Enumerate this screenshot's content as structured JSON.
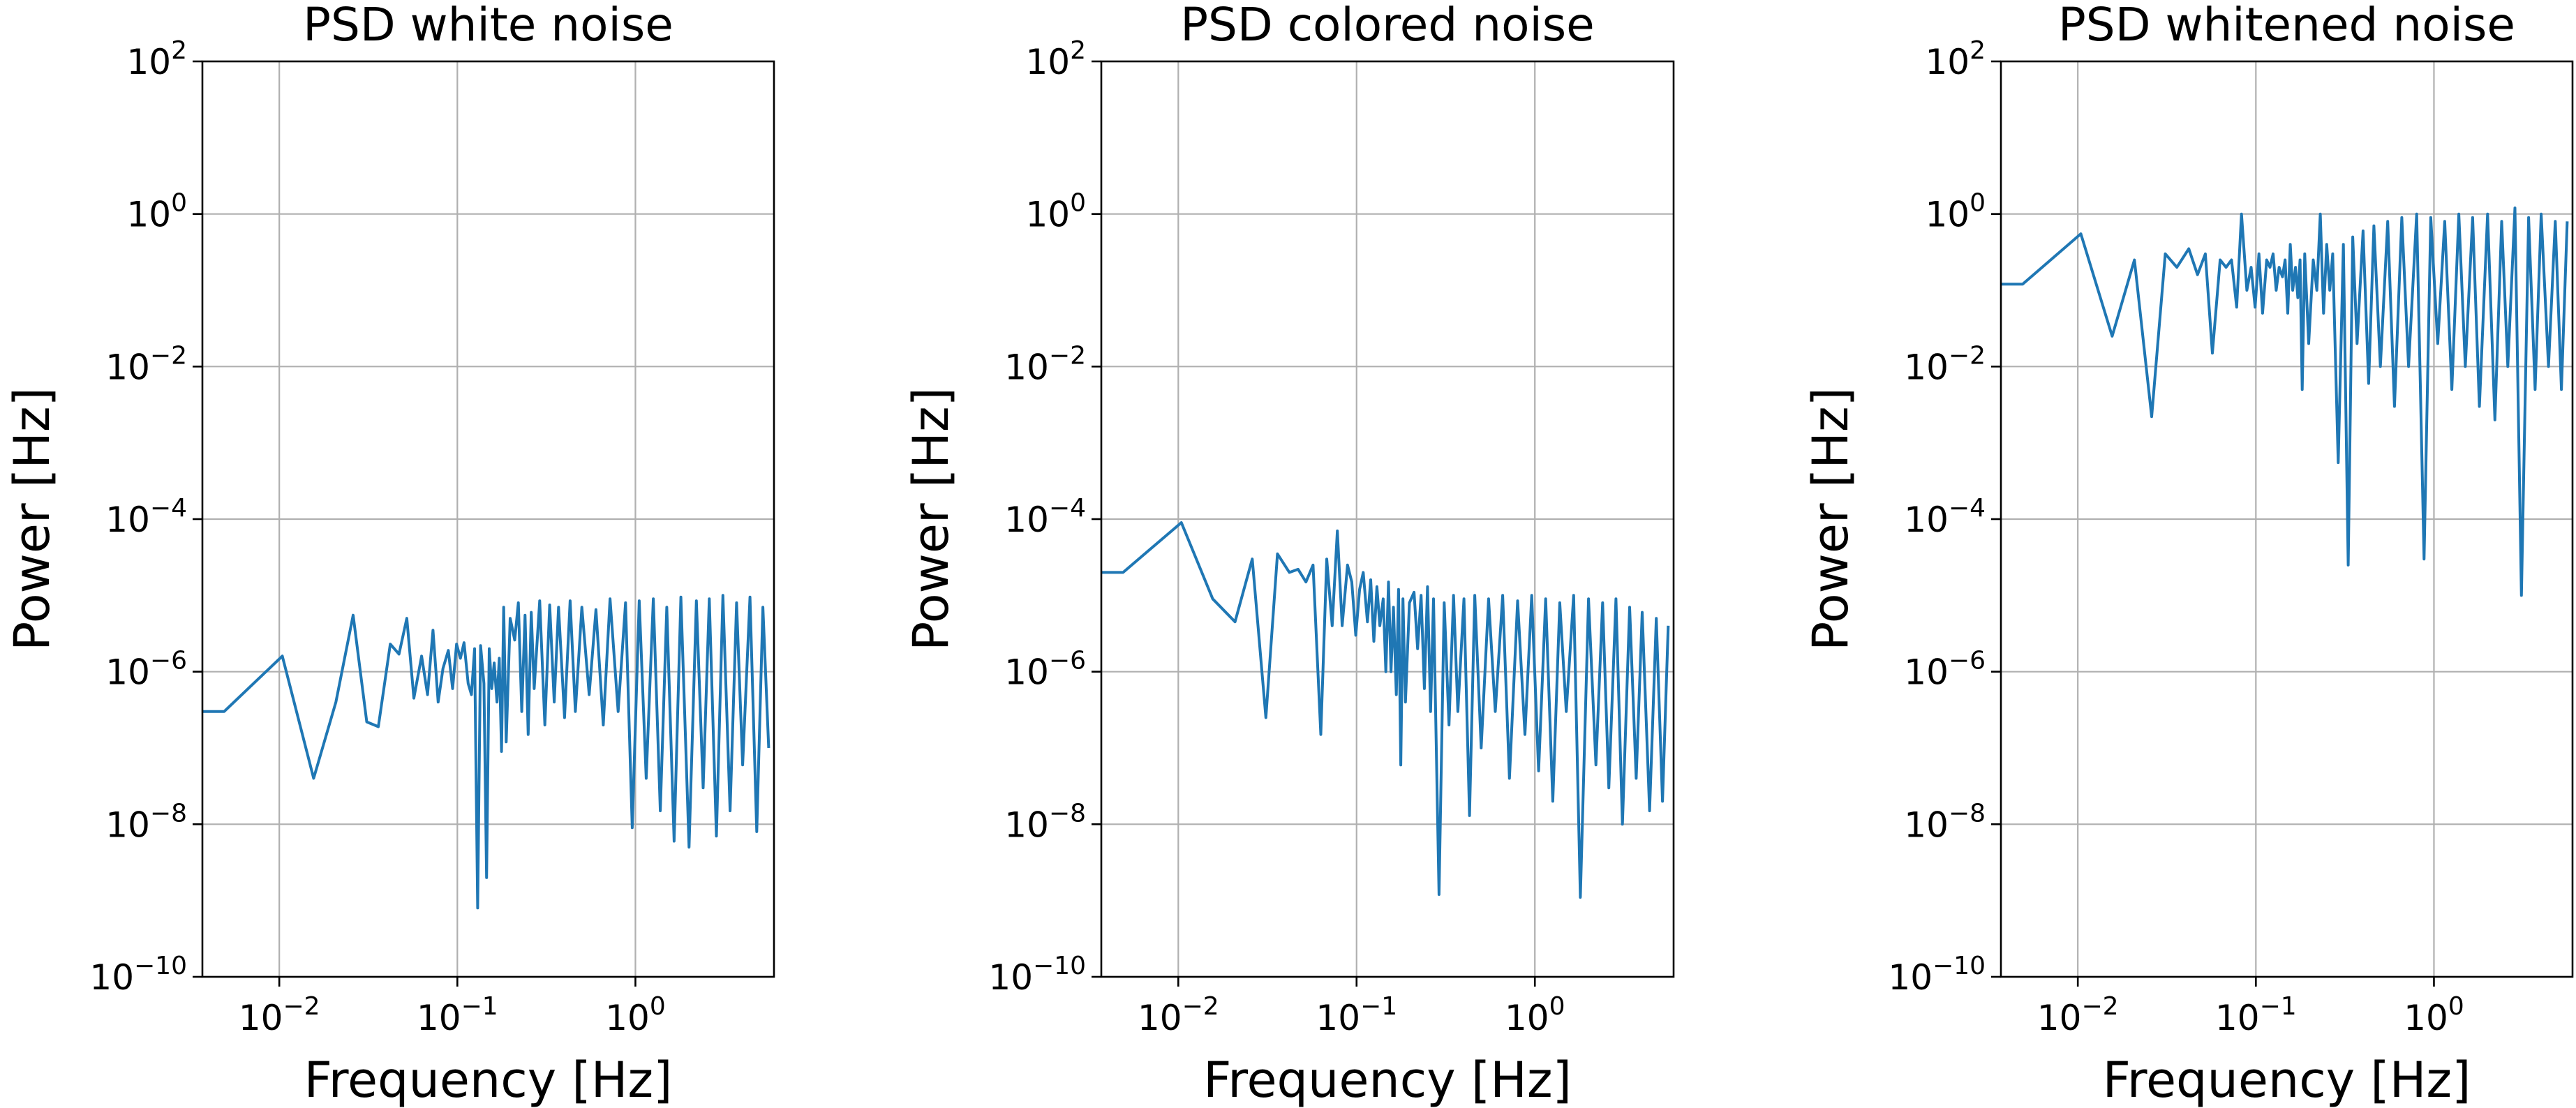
{
  "chart_data": [
    {
      "type": "line",
      "title": "PSD white noise",
      "xlabel": "Frequency [Hz]",
      "ylabel": "Power [Hz]",
      "xscale": "log",
      "yscale": "log",
      "xlim": [
        0.0037,
        6.0
      ],
      "ylim": [
        1e-10,
        100
      ],
      "grid": true,
      "color": "#1f77b4",
      "x_ticks": [
        {
          "value": 0.01,
          "base": "10",
          "exp": "−2"
        },
        {
          "value": 0.1,
          "base": "10",
          "exp": "−1"
        },
        {
          "value": 1,
          "base": "10",
          "exp": "0"
        }
      ],
      "y_ticks": [
        {
          "value": 100,
          "base": "10",
          "exp": "2"
        },
        {
          "value": 1,
          "base": "10",
          "exp": "0"
        },
        {
          "value": 0.01,
          "base": "10",
          "exp": "−2"
        },
        {
          "value": 0.0001,
          "base": "10",
          "exp": "−4"
        },
        {
          "value": 1e-06,
          "base": "10",
          "exp": "−6"
        },
        {
          "value": 1e-08,
          "base": "10",
          "exp": "−8"
        },
        {
          "value": 1e-10,
          "base": "10",
          "exp": "−10"
        }
      ],
      "series": [
        {
          "name": "PSD",
          "x": [
            0.0037,
            0.0049,
            0.0104,
            0.0156,
            0.0208,
            0.026,
            0.031,
            0.036,
            0.042,
            0.047,
            0.052,
            0.057,
            0.063,
            0.068,
            0.073,
            0.078,
            0.083,
            0.089,
            0.094,
            0.099,
            0.104,
            0.109,
            0.115,
            0.12,
            0.125,
            0.13,
            0.135,
            0.141,
            0.146,
            0.151,
            0.156,
            0.161,
            0.167,
            0.172,
            0.177,
            0.182,
            0.188,
            0.198,
            0.21,
            0.22,
            0.23,
            0.24,
            0.25,
            0.26,
            0.27,
            0.29,
            0.31,
            0.33,
            0.35,
            0.37,
            0.4,
            0.43,
            0.46,
            0.5,
            0.55,
            0.6,
            0.66,
            0.72,
            0.8,
            0.88,
            0.96,
            1.05,
            1.15,
            1.26,
            1.38,
            1.5,
            1.65,
            1.8,
            2.0,
            2.2,
            2.4,
            2.6,
            2.85,
            3.1,
            3.4,
            3.7,
            4.0,
            4.4,
            4.8,
            5.2,
            5.6
          ],
          "y": [
            3e-07,
            3e-07,
            1.6e-06,
            4e-08,
            4e-07,
            5.5e-06,
            2.2e-07,
            1.9e-07,
            2.3e-06,
            1.7e-06,
            5e-06,
            4.5e-07,
            1.6e-06,
            5e-07,
            3.5e-06,
            4e-07,
            1.1e-06,
            1.9e-06,
            6e-07,
            2.3e-06,
            1.5e-06,
            2.4e-06,
            7e-07,
            5e-07,
            2e-06,
            8e-10,
            2.2e-06,
            7e-07,
            2e-09,
            2e-06,
            6e-07,
            1.3e-06,
            4e-07,
            1.5e-06,
            9e-08,
            7e-06,
            1.2e-07,
            5e-06,
            2.6e-06,
            8e-06,
            3e-07,
            5.5e-06,
            1.5e-07,
            6e-06,
            6e-07,
            8.5e-06,
            2e-07,
            7.5e-06,
            4e-07,
            7e-06,
            2.5e-07,
            8.5e-06,
            3e-07,
            7e-06,
            5e-07,
            6.5e-06,
            2e-07,
            9e-06,
            3e-07,
            8e-06,
            9e-09,
            8.5e-06,
            4e-08,
            9e-06,
            1.5e-08,
            7e-06,
            6e-09,
            9.5e-06,
            5e-09,
            8.5e-06,
            3e-08,
            9e-06,
            7e-09,
            1e-05,
            1.5e-08,
            8e-06,
            6e-08,
            9.5e-06,
            8e-09,
            7e-06,
            1e-07
          ]
        }
      ]
    },
    {
      "type": "line",
      "title": "PSD colored noise",
      "xlabel": "Frequency [Hz]",
      "ylabel": "Power [Hz]",
      "xscale": "log",
      "yscale": "log",
      "xlim": [
        0.0037,
        6.0
      ],
      "ylim": [
        1e-10,
        100
      ],
      "grid": true,
      "color": "#1f77b4",
      "x_ticks": [
        {
          "value": 0.01,
          "base": "10",
          "exp": "−2"
        },
        {
          "value": 0.1,
          "base": "10",
          "exp": "−1"
        },
        {
          "value": 1,
          "base": "10",
          "exp": "0"
        }
      ],
      "y_ticks": [
        {
          "value": 100,
          "base": "10",
          "exp": "2"
        },
        {
          "value": 1,
          "base": "10",
          "exp": "0"
        },
        {
          "value": 0.01,
          "base": "10",
          "exp": "−2"
        },
        {
          "value": 0.0001,
          "base": "10",
          "exp": "−4"
        },
        {
          "value": 1e-06,
          "base": "10",
          "exp": "−6"
        },
        {
          "value": 1e-08,
          "base": "10",
          "exp": "−8"
        },
        {
          "value": 1e-10,
          "base": "10",
          "exp": "−10"
        }
      ],
      "series": [
        {
          "name": "PSD",
          "x": [
            0.0037,
            0.0049,
            0.0104,
            0.0156,
            0.0208,
            0.026,
            0.031,
            0.036,
            0.042,
            0.047,
            0.052,
            0.057,
            0.063,
            0.068,
            0.073,
            0.078,
            0.083,
            0.089,
            0.094,
            0.099,
            0.104,
            0.109,
            0.115,
            0.12,
            0.125,
            0.13,
            0.135,
            0.141,
            0.146,
            0.151,
            0.156,
            0.161,
            0.167,
            0.172,
            0.177,
            0.182,
            0.188,
            0.198,
            0.21,
            0.22,
            0.23,
            0.24,
            0.25,
            0.26,
            0.27,
            0.29,
            0.31,
            0.33,
            0.35,
            0.37,
            0.4,
            0.43,
            0.46,
            0.5,
            0.55,
            0.6,
            0.66,
            0.72,
            0.8,
            0.88,
            0.96,
            1.05,
            1.15,
            1.26,
            1.38,
            1.5,
            1.65,
            1.8,
            2.0,
            2.2,
            2.4,
            2.6,
            2.85,
            3.1,
            3.4,
            3.7,
            4.0,
            4.4,
            4.8,
            5.2,
            5.6
          ],
          "y": [
            2e-05,
            2e-05,
            9e-05,
            9e-06,
            4.5e-06,
            3e-05,
            2.5e-07,
            3.5e-05,
            2e-05,
            2.2e-05,
            1.5e-05,
            2.5e-05,
            1.5e-07,
            3e-05,
            4e-06,
            7e-05,
            4e-06,
            2.5e-05,
            1.5e-05,
            3e-06,
            1.2e-05,
            2e-05,
            4.5e-06,
            1.6e-05,
            2.5e-06,
            1.3e-05,
            4e-06,
            9e-06,
            1e-06,
            1.5e-05,
            1e-06,
            7e-06,
            5e-07,
            1.2e-05,
            6e-08,
            9e-06,
            4e-07,
            8e-06,
            1.1e-05,
            2e-06,
            1e-05,
            6e-07,
            1.3e-05,
            3e-07,
            9e-06,
            1.2e-09,
            8e-06,
            2e-07,
            1e-05,
            3e-07,
            9e-06,
            1.3e-08,
            1e-05,
            1e-07,
            9e-06,
            3e-07,
            1e-05,
            4e-08,
            8.5e-06,
            1.5e-07,
            1e-05,
            5e-08,
            9e-06,
            2e-08,
            8e-06,
            3e-07,
            1e-05,
            1.1e-09,
            9e-06,
            6e-08,
            8e-06,
            3e-08,
            9e-06,
            1e-08,
            7e-06,
            4e-08,
            6e-06,
            1.5e-08,
            5e-06,
            2e-08,
            4e-06
          ]
        }
      ]
    },
    {
      "type": "line",
      "title": "PSD whitened noise",
      "xlabel": "Frequency [Hz]",
      "ylabel": "Power [Hz]",
      "xscale": "log",
      "yscale": "log",
      "xlim": [
        0.0037,
        6.0
      ],
      "ylim": [
        1e-10,
        100
      ],
      "grid": true,
      "color": "#1f77b4",
      "x_ticks": [
        {
          "value": 0.01,
          "base": "10",
          "exp": "−2"
        },
        {
          "value": 0.1,
          "base": "10",
          "exp": "−1"
        },
        {
          "value": 1,
          "base": "10",
          "exp": "0"
        }
      ],
      "y_ticks": [
        {
          "value": 100,
          "base": "10",
          "exp": "2"
        },
        {
          "value": 1,
          "base": "10",
          "exp": "0"
        },
        {
          "value": 0.01,
          "base": "10",
          "exp": "−2"
        },
        {
          "value": 0.0001,
          "base": "10",
          "exp": "−4"
        },
        {
          "value": 1e-06,
          "base": "10",
          "exp": "−6"
        },
        {
          "value": 1e-08,
          "base": "10",
          "exp": "−8"
        },
        {
          "value": 1e-10,
          "base": "10",
          "exp": "−10"
        }
      ],
      "series": [
        {
          "name": "PSD",
          "x": [
            0.0037,
            0.0049,
            0.0104,
            0.0156,
            0.0208,
            0.026,
            0.031,
            0.036,
            0.042,
            0.047,
            0.052,
            0.057,
            0.063,
            0.068,
            0.073,
            0.078,
            0.083,
            0.089,
            0.094,
            0.099,
            0.104,
            0.109,
            0.115,
            0.12,
            0.125,
            0.13,
            0.135,
            0.141,
            0.146,
            0.151,
            0.156,
            0.161,
            0.167,
            0.172,
            0.177,
            0.182,
            0.188,
            0.198,
            0.21,
            0.22,
            0.23,
            0.24,
            0.25,
            0.26,
            0.27,
            0.29,
            0.31,
            0.33,
            0.35,
            0.37,
            0.4,
            0.43,
            0.46,
            0.5,
            0.55,
            0.6,
            0.66,
            0.72,
            0.8,
            0.88,
            0.96,
            1.05,
            1.15,
            1.26,
            1.38,
            1.5,
            1.65,
            1.8,
            2.0,
            2.2,
            2.4,
            2.6,
            2.85,
            3.1,
            3.4,
            3.7,
            4.0,
            4.4,
            4.8,
            5.2,
            5.6
          ],
          "y": [
            0.12,
            0.12,
            0.55,
            0.025,
            0.25,
            0.0022,
            0.3,
            0.2,
            0.35,
            0.16,
            0.3,
            0.015,
            0.25,
            0.2,
            0.25,
            0.06,
            1.0,
            0.1,
            0.2,
            0.06,
            0.3,
            0.05,
            0.25,
            0.2,
            0.3,
            0.1,
            0.2,
            0.15,
            0.25,
            0.05,
            0.4,
            0.1,
            0.2,
            0.08,
            0.25,
            0.005,
            0.3,
            0.02,
            0.25,
            0.1,
            1.0,
            0.05,
            0.4,
            0.1,
            0.3,
            0.00055,
            0.4,
            2.5e-05,
            0.5,
            0.02,
            0.6,
            0.006,
            0.7,
            0.01,
            0.8,
            0.003,
            0.9,
            0.01,
            1.0,
            3e-05,
            0.9,
            0.02,
            0.8,
            0.005,
            1.0,
            0.01,
            0.9,
            0.003,
            1.0,
            0.002,
            0.8,
            0.01,
            1.2,
            1e-05,
            0.9,
            0.005,
            1.0,
            0.01,
            0.8,
            0.005,
            0.8
          ]
        }
      ]
    }
  ]
}
